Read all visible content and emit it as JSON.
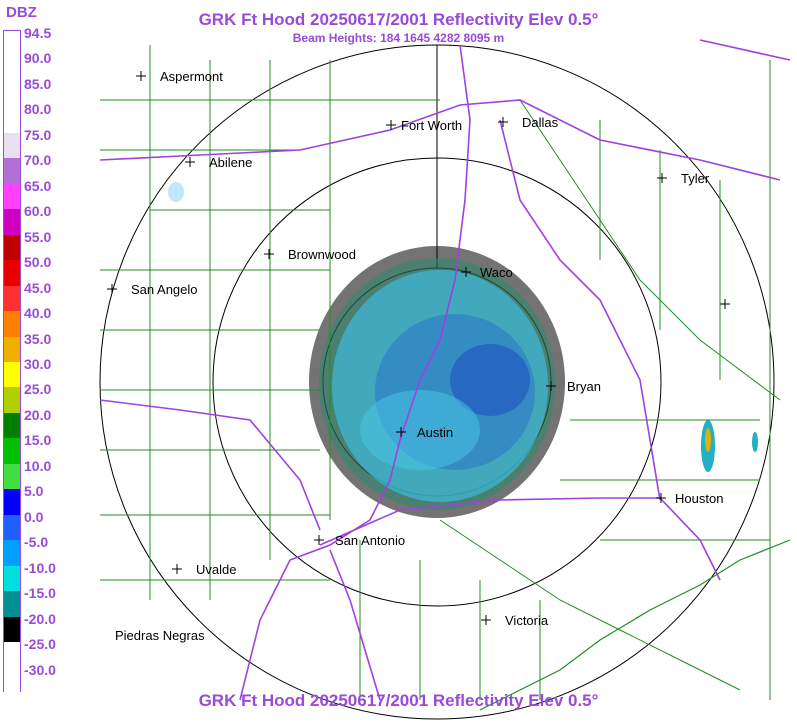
{
  "header": {
    "title": "GRK Ft Hood 20250617/2001 Reflectivity Elev 0.5°",
    "subtitle": "Beam Heights: 184 1645 4282 8095 m"
  },
  "footer": {
    "title": "GRK Ft Hood 20250617/2001 Reflectivity Elev 0.5°"
  },
  "legend": {
    "unit": "DBZ",
    "labels": [
      "94.5",
      "90.0",
      "85.0",
      "80.0",
      "75.0",
      "70.0",
      "65.0",
      "60.0",
      "55.0",
      "50.0",
      "45.0",
      "40.0",
      "35.0",
      "30.0",
      "25.0",
      "20.0",
      "15.0",
      "10.0",
      "5.0",
      "0.0",
      "-5.0",
      "-10.0",
      "-15.0",
      "-20.0",
      "-25.0",
      "-30.0"
    ],
    "colors": [
      "#ffffff",
      "#ffffff",
      "#ffffff",
      "#ffffff",
      "#e8e0f0",
      "#b070d8",
      "#ff40ff",
      "#d000c0",
      "#c00000",
      "#e80000",
      "#ff3030",
      "#ff8000",
      "#f0b000",
      "#ffff00",
      "#b0d000",
      "#008000",
      "#00c000",
      "#40e040",
      "#0000ff",
      "#2060ff",
      "#00a0ff",
      "#00e0e0",
      "#009090",
      "#000000",
      "#ffffff",
      "#ffffff"
    ]
  },
  "map": {
    "cities": [
      {
        "name": "Aspermont"
      },
      {
        "name": "Fort Worth"
      },
      {
        "name": "Dallas"
      },
      {
        "name": "Abilene"
      },
      {
        "name": "Tyler"
      },
      {
        "name": "Brownwood"
      },
      {
        "name": "Waco"
      },
      {
        "name": "San Angelo"
      },
      {
        "name": "Bryan"
      },
      {
        "name": "Austin"
      },
      {
        "name": "Houston"
      },
      {
        "name": "San Antonio"
      },
      {
        "name": "Uvalde"
      },
      {
        "name": "Victoria"
      },
      {
        "name": "Piedras Negras"
      },
      {
        "name": ""
      }
    ]
  }
}
